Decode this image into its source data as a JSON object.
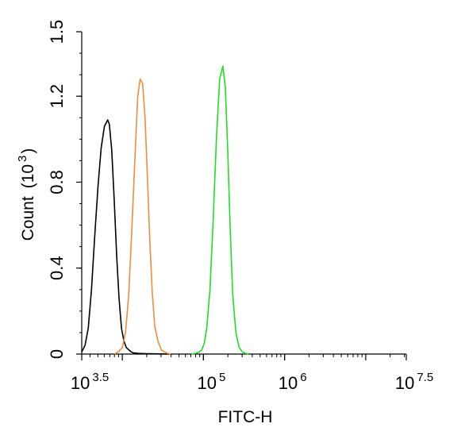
{
  "chart_data": {
    "type": "line",
    "title": "",
    "xlabel": "FITC-H",
    "ylabel": "Count",
    "ylabel_unit_base": "(10",
    "ylabel_unit_exp": "3",
    "ylabel_unit_close": ")",
    "x_scale": "log10",
    "xlim_log10": [
      3.5,
      7.5
    ],
    "ylim": [
      0,
      1.5
    ],
    "y_ticks": [
      {
        "value": 0,
        "label": "0"
      },
      {
        "value": 0.4,
        "label": "0.4"
      },
      {
        "value": 0.8,
        "label": "0.8"
      },
      {
        "value": 1.2,
        "label": "1.2"
      },
      {
        "value": 1.5,
        "label": "1.5"
      }
    ],
    "x_ticks": [
      {
        "value_log10": 3.5,
        "base": "10",
        "exp": "3.5"
      },
      {
        "value_log10": 5,
        "base": "10",
        "exp": "5"
      },
      {
        "value_log10": 6,
        "base": "10",
        "exp": "6"
      },
      {
        "value_log10": 7.5,
        "base": "10",
        "exp": "7.5"
      }
    ],
    "grid": false,
    "legend": "none",
    "series": [
      {
        "color": "#000000",
        "x_log10": [
          3.5,
          3.54,
          3.58,
          3.62,
          3.66,
          3.7,
          3.74,
          3.78,
          3.82,
          3.84,
          3.87,
          3.9,
          3.93,
          3.96,
          3.99,
          4.02,
          4.05,
          4.08,
          4.11,
          4.14,
          4.2,
          4.3,
          4.4,
          4.6
        ],
        "values": [
          0.01,
          0.04,
          0.12,
          0.3,
          0.55,
          0.78,
          0.96,
          1.06,
          1.09,
          1.07,
          0.95,
          0.72,
          0.46,
          0.26,
          0.12,
          0.06,
          0.03,
          0.02,
          0.01,
          0.005,
          0.003,
          0.002,
          0.001,
          0.0
        ]
      },
      {
        "color": "#f28c3c",
        "x_log10": [
          3.9,
          3.95,
          4.0,
          4.04,
          4.08,
          4.12,
          4.16,
          4.19,
          4.22,
          4.25,
          4.28,
          4.31,
          4.34,
          4.37,
          4.4,
          4.44,
          4.48,
          4.52,
          4.56,
          4.6
        ],
        "values": [
          0.0,
          0.01,
          0.03,
          0.1,
          0.28,
          0.6,
          0.95,
          1.2,
          1.28,
          1.26,
          1.1,
          0.82,
          0.52,
          0.28,
          0.13,
          0.06,
          0.02,
          0.01,
          0.003,
          0.0
        ]
      },
      {
        "color": "#22dd22",
        "x_log10": [
          4.85,
          4.9,
          4.95,
          4.98,
          5.01,
          5.04,
          5.08,
          5.12,
          5.16,
          5.2,
          5.24,
          5.27,
          5.3,
          5.33,
          5.36,
          5.4,
          5.44,
          5.48,
          5.52,
          5.56
        ],
        "values": [
          0.0,
          0.003,
          0.01,
          0.02,
          0.05,
          0.12,
          0.3,
          0.62,
          1.0,
          1.28,
          1.34,
          1.24,
          0.95,
          0.58,
          0.28,
          0.1,
          0.03,
          0.01,
          0.003,
          0.0
        ]
      }
    ]
  }
}
